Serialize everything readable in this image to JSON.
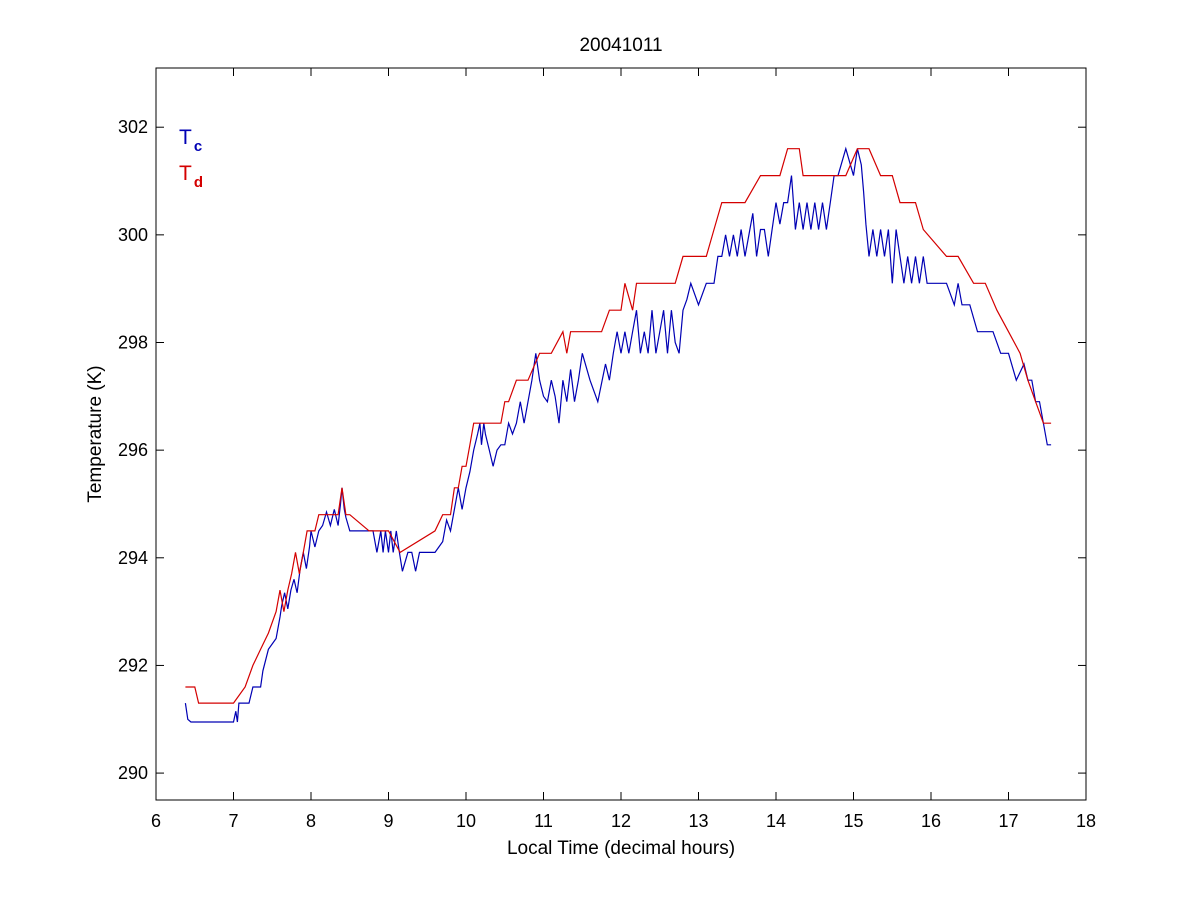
{
  "chart_data": {
    "type": "line",
    "title": "20041011",
    "xlabel": "Local Time (decimal hours)",
    "ylabel": "Temperature (K)",
    "xlim": [
      6,
      18
    ],
    "ylim": [
      289.5,
      303.1
    ],
    "xticks": [
      6,
      7,
      8,
      9,
      10,
      11,
      12,
      13,
      14,
      15,
      16,
      17,
      18
    ],
    "yticks": [
      290,
      292,
      294,
      296,
      298,
      300,
      302
    ],
    "xtick_labels": [
      "6",
      "7",
      "8",
      "9",
      "10",
      "11",
      "12",
      "13",
      "14",
      "15",
      "16",
      "17",
      "18"
    ],
    "ytick_labels": [
      "290",
      "292",
      "294",
      "296",
      "298",
      "300",
      "302"
    ],
    "grid": false,
    "legend_position": "top-left",
    "series": [
      {
        "name": "Tc",
        "legend_main": "T",
        "legend_sub": "c",
        "color": "#0000b4",
        "x": [
          6.38,
          6.41,
          6.45,
          6.7,
          7.0,
          7.03,
          7.05,
          7.07,
          7.2,
          7.25,
          7.35,
          7.38,
          7.45,
          7.55,
          7.6,
          7.62,
          7.66,
          7.7,
          7.74,
          7.78,
          7.82,
          7.86,
          7.9,
          7.94,
          7.98,
          8.0,
          8.05,
          8.1,
          8.15,
          8.2,
          8.25,
          8.3,
          8.35,
          8.38,
          8.4,
          8.43,
          8.45,
          8.5,
          8.6,
          8.7,
          8.8,
          8.85,
          8.9,
          8.93,
          8.96,
          9.0,
          9.03,
          9.06,
          9.1,
          9.14,
          9.18,
          9.25,
          9.3,
          9.35,
          9.4,
          9.5,
          9.6,
          9.7,
          9.75,
          9.8,
          9.85,
          9.9,
          9.95,
          10.0,
          10.05,
          10.1,
          10.15,
          10.18,
          10.2,
          10.23,
          10.25,
          10.3,
          10.35,
          10.4,
          10.45,
          10.5,
          10.55,
          10.6,
          10.65,
          10.7,
          10.75,
          10.8,
          10.85,
          10.9,
          10.95,
          11.0,
          11.05,
          11.1,
          11.15,
          11.2,
          11.25,
          11.3,
          11.35,
          11.4,
          11.45,
          11.5,
          11.6,
          11.7,
          11.8,
          11.85,
          11.9,
          11.95,
          12.0,
          12.05,
          12.1,
          12.15,
          12.2,
          12.25,
          12.3,
          12.35,
          12.4,
          12.45,
          12.5,
          12.55,
          12.6,
          12.65,
          12.7,
          12.75,
          12.8,
          12.85,
          12.9,
          13.0,
          13.1,
          13.2,
          13.25,
          13.3,
          13.35,
          13.4,
          13.45,
          13.5,
          13.55,
          13.6,
          13.65,
          13.7,
          13.75,
          13.8,
          13.85,
          13.9,
          13.95,
          14.0,
          14.05,
          14.1,
          14.15,
          14.2,
          14.25,
          14.3,
          14.35,
          14.4,
          14.45,
          14.5,
          14.55,
          14.6,
          14.65,
          14.7,
          14.75,
          14.8,
          14.9,
          15.0,
          15.05,
          15.1,
          15.13,
          15.16,
          15.2,
          15.25,
          15.3,
          15.35,
          15.4,
          15.45,
          15.5,
          15.55,
          15.6,
          15.65,
          15.7,
          15.75,
          15.8,
          15.85,
          15.9,
          15.95,
          16.0,
          16.1,
          16.2,
          16.3,
          16.35,
          16.4,
          16.5,
          16.6,
          16.7,
          16.8,
          16.9,
          17.0,
          17.1,
          17.2,
          17.25,
          17.3,
          17.35,
          17.4,
          17.45,
          17.5,
          17.55
        ],
        "values": [
          291.3,
          291.0,
          290.95,
          290.95,
          290.95,
          291.15,
          290.95,
          291.3,
          291.3,
          291.6,
          291.6,
          291.9,
          292.3,
          292.5,
          292.9,
          293.1,
          293.35,
          293.05,
          293.4,
          293.6,
          293.35,
          293.8,
          294.1,
          293.8,
          294.2,
          294.5,
          294.2,
          294.5,
          294.6,
          294.85,
          294.6,
          294.9,
          294.6,
          295.0,
          295.3,
          294.9,
          294.75,
          294.5,
          294.5,
          294.5,
          294.5,
          294.1,
          294.5,
          294.1,
          294.5,
          294.1,
          294.5,
          294.1,
          294.5,
          294.1,
          293.75,
          294.1,
          294.1,
          293.75,
          294.1,
          294.1,
          294.1,
          294.3,
          294.7,
          294.5,
          294.9,
          295.3,
          294.9,
          295.3,
          295.6,
          296.0,
          296.3,
          296.5,
          296.1,
          296.5,
          296.3,
          296.0,
          295.7,
          296.0,
          296.1,
          296.1,
          296.5,
          296.3,
          296.5,
          296.9,
          296.5,
          296.9,
          297.3,
          297.8,
          297.3,
          297.0,
          296.9,
          297.3,
          297.0,
          296.5,
          297.3,
          296.9,
          297.5,
          296.9,
          297.3,
          297.8,
          297.3,
          296.9,
          297.6,
          297.3,
          297.8,
          298.2,
          297.8,
          298.2,
          297.8,
          298.2,
          298.6,
          297.8,
          298.2,
          297.8,
          298.6,
          297.8,
          298.2,
          298.6,
          297.8,
          298.6,
          298.0,
          297.8,
          298.6,
          298.8,
          299.1,
          298.7,
          299.1,
          299.1,
          299.6,
          299.6,
          300.0,
          299.6,
          300.0,
          299.6,
          300.1,
          299.6,
          300.0,
          300.4,
          299.6,
          300.1,
          300.1,
          299.6,
          300.1,
          300.6,
          300.2,
          300.6,
          300.6,
          301.1,
          300.1,
          300.6,
          300.1,
          300.6,
          300.1,
          300.6,
          300.1,
          300.6,
          300.1,
          300.6,
          301.1,
          301.1,
          301.6,
          301.1,
          301.6,
          301.3,
          300.8,
          300.2,
          299.6,
          300.1,
          299.6,
          300.1,
          299.6,
          300.1,
          299.1,
          300.1,
          299.6,
          299.1,
          299.6,
          299.1,
          299.6,
          299.1,
          299.6,
          299.1,
          299.1,
          299.1,
          299.1,
          298.7,
          299.1,
          298.7,
          298.7,
          298.2,
          298.2,
          298.2,
          297.8,
          297.8,
          297.3,
          297.6,
          297.3,
          297.3,
          296.9,
          296.9,
          296.5,
          296.1,
          296.1
        ]
      },
      {
        "name": "Td",
        "legend_main": "T",
        "legend_sub": "d",
        "color": "#d40000",
        "x": [
          6.38,
          6.5,
          6.55,
          7.0,
          7.15,
          7.25,
          7.35,
          7.45,
          7.55,
          7.6,
          7.65,
          7.7,
          7.75,
          7.8,
          7.85,
          7.9,
          7.95,
          8.0,
          8.05,
          8.1,
          8.35,
          8.4,
          8.45,
          8.5,
          8.75,
          8.8,
          9.0,
          9.15,
          9.6,
          9.7,
          9.8,
          9.85,
          9.9,
          9.95,
          10.0,
          10.05,
          10.1,
          10.15,
          10.2,
          10.3,
          10.45,
          10.5,
          10.55,
          10.65,
          10.7,
          10.8,
          10.95,
          11.1,
          11.25,
          11.3,
          11.35,
          11.4,
          11.45,
          11.75,
          11.85,
          12.0,
          12.05,
          12.15,
          12.2,
          12.25,
          12.7,
          12.8,
          13.1,
          13.2,
          13.3,
          13.45,
          13.6,
          13.8,
          14.05,
          14.15,
          14.2,
          14.3,
          14.35,
          14.5,
          14.7,
          14.9,
          15.05,
          15.15,
          15.2,
          15.35,
          15.45,
          15.5,
          15.6,
          15.8,
          15.9,
          16.2,
          16.35,
          16.55,
          16.7,
          16.85,
          17.0,
          17.15,
          17.25,
          17.35,
          17.45,
          17.55
        ],
        "values": [
          291.6,
          291.6,
          291.3,
          291.3,
          291.6,
          292.0,
          292.3,
          292.6,
          293.0,
          293.4,
          293.0,
          293.4,
          293.7,
          294.1,
          293.7,
          294.1,
          294.5,
          294.5,
          294.5,
          294.8,
          294.8,
          295.3,
          294.8,
          294.8,
          294.5,
          294.5,
          294.5,
          294.1,
          294.5,
          294.8,
          294.8,
          295.3,
          295.3,
          295.7,
          295.7,
          296.1,
          296.5,
          296.5,
          296.5,
          296.5,
          296.5,
          296.9,
          296.9,
          297.3,
          297.3,
          297.3,
          297.8,
          297.8,
          298.2,
          297.8,
          298.2,
          298.2,
          298.2,
          298.2,
          298.6,
          298.6,
          299.1,
          298.6,
          299.1,
          299.1,
          299.1,
          299.6,
          299.6,
          300.1,
          300.6,
          300.6,
          300.6,
          301.1,
          301.1,
          301.6,
          301.6,
          301.6,
          301.1,
          301.1,
          301.1,
          301.1,
          301.6,
          301.6,
          301.6,
          301.1,
          301.1,
          301.1,
          300.6,
          300.6,
          300.1,
          299.6,
          299.6,
          299.1,
          299.1,
          298.6,
          298.2,
          297.8,
          297.3,
          296.9,
          296.5,
          296.5
        ]
      }
    ]
  }
}
